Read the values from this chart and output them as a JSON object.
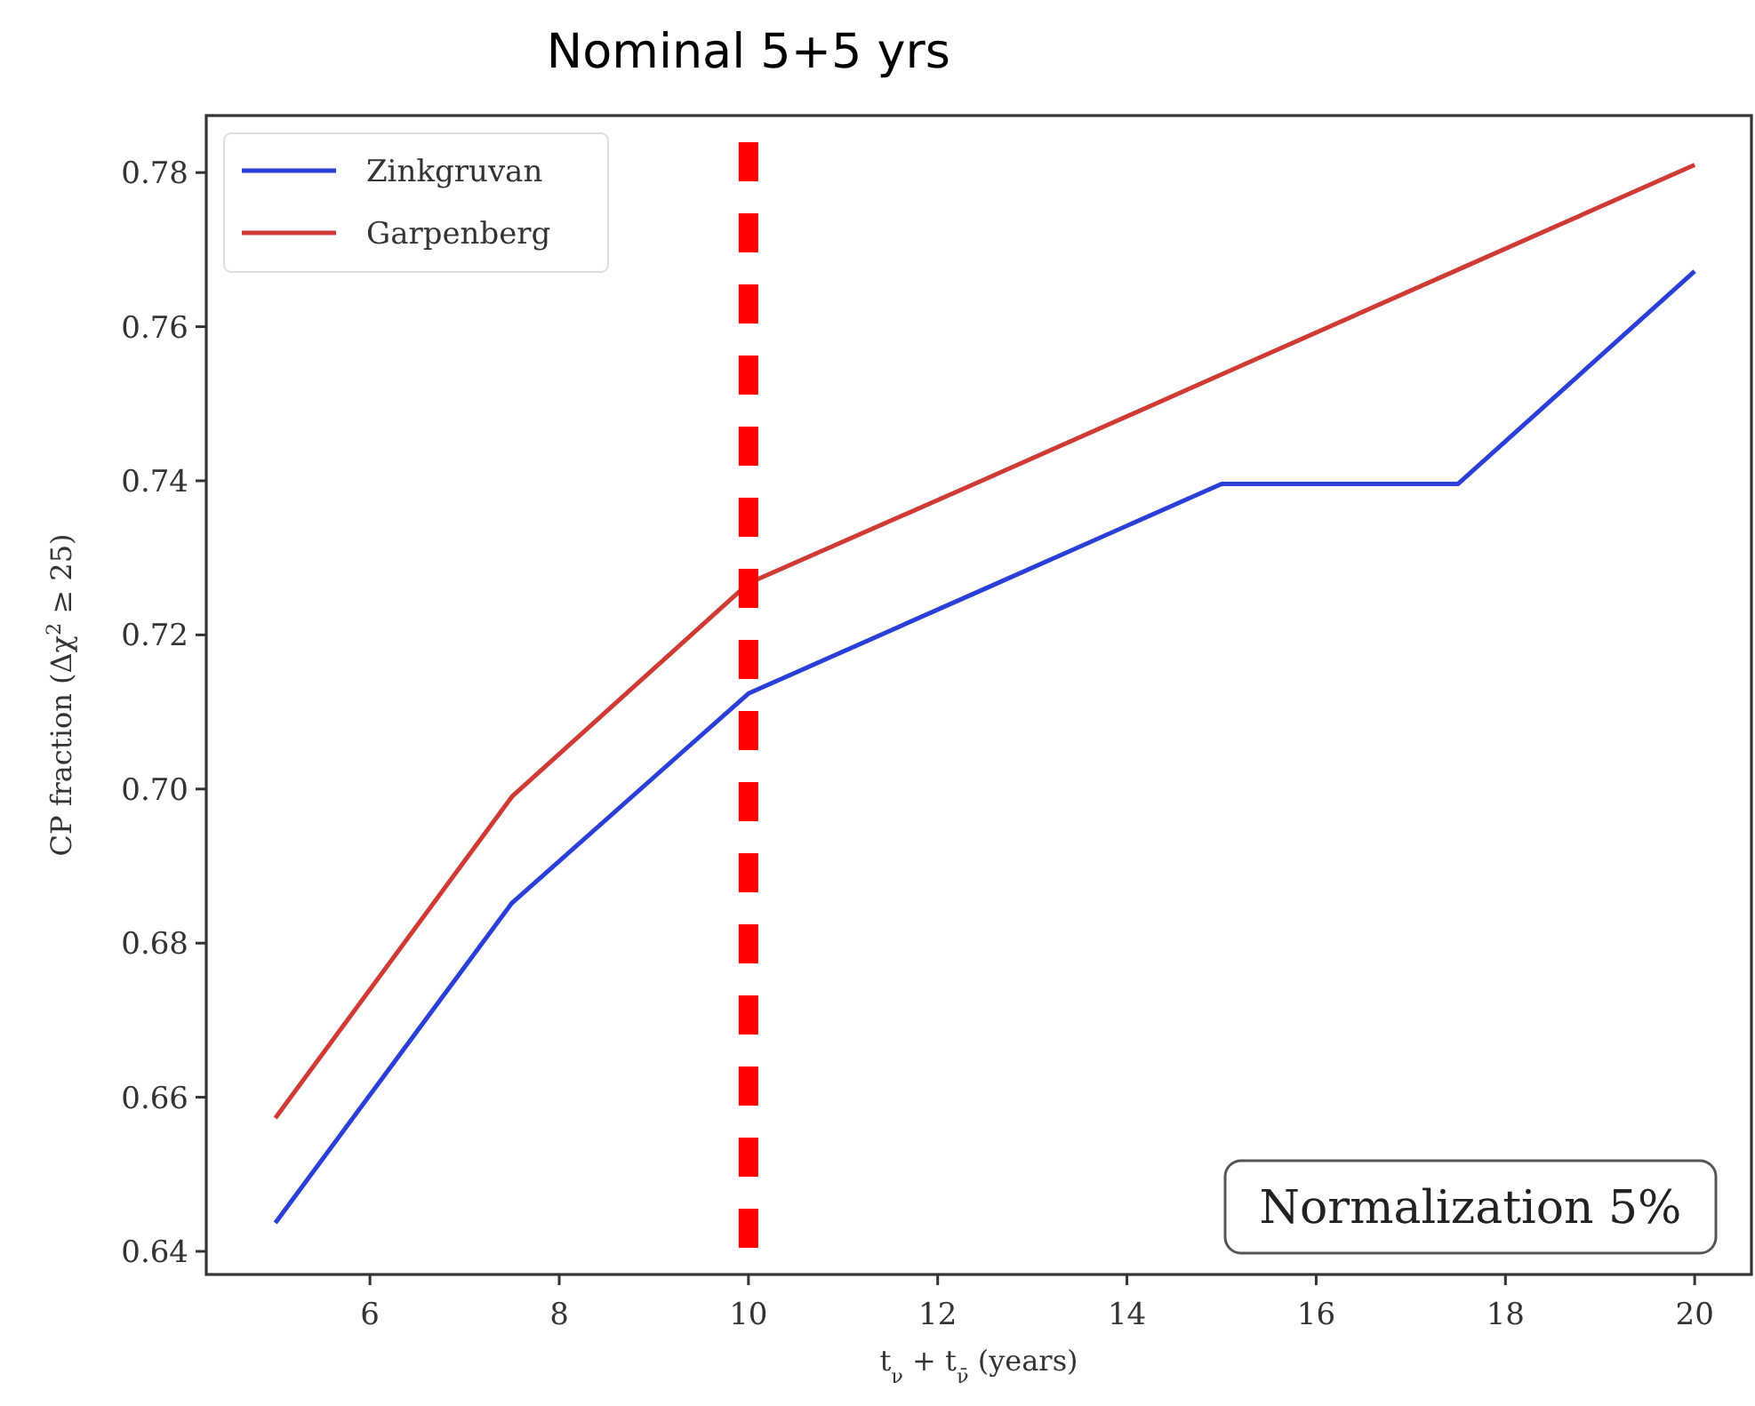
{
  "chart_data": {
    "type": "line",
    "x": [
      5,
      7.5,
      10,
      12.5,
      15,
      17.5,
      20
    ],
    "series": [
      {
        "name": "Zinkgruvan",
        "color": "#2a3fd8",
        "values": [
          0.6437,
          0.6852,
          0.7124,
          0.726,
          0.7396,
          0.7396,
          0.7672
        ]
      },
      {
        "name": "Garpenberg",
        "color": "#d03a35",
        "values": [
          0.6573,
          0.699,
          0.7267,
          0.7402,
          0.7538,
          0.7674,
          0.781
        ]
      }
    ],
    "xlim": [
      4.27,
      20.6
    ],
    "xticks": [
      6,
      8,
      10,
      12,
      14,
      16,
      18,
      20
    ],
    "ylim": [
      0.637,
      0.7874
    ],
    "yticks": [
      0.64,
      0.66,
      0.68,
      {
        "value": 0.7,
        "label": "0.70"
      },
      0.72,
      0.74,
      0.76,
      0.78
    ],
    "xlabel": "t$_{ν}$ + t$_{ν̄}$ (years)",
    "ylabel": "CP fraction (Δχ$^{2}$ ≥ 25)",
    "ref_lines": [
      {
        "axis": "x",
        "value": 10,
        "label": "Nominal 5+5 yrs",
        "color": "#ff0000",
        "line_style": "dashed"
      }
    ],
    "annotations": [
      "Normalization 5%"
    ],
    "legend": "top left",
    "grid": false
  }
}
